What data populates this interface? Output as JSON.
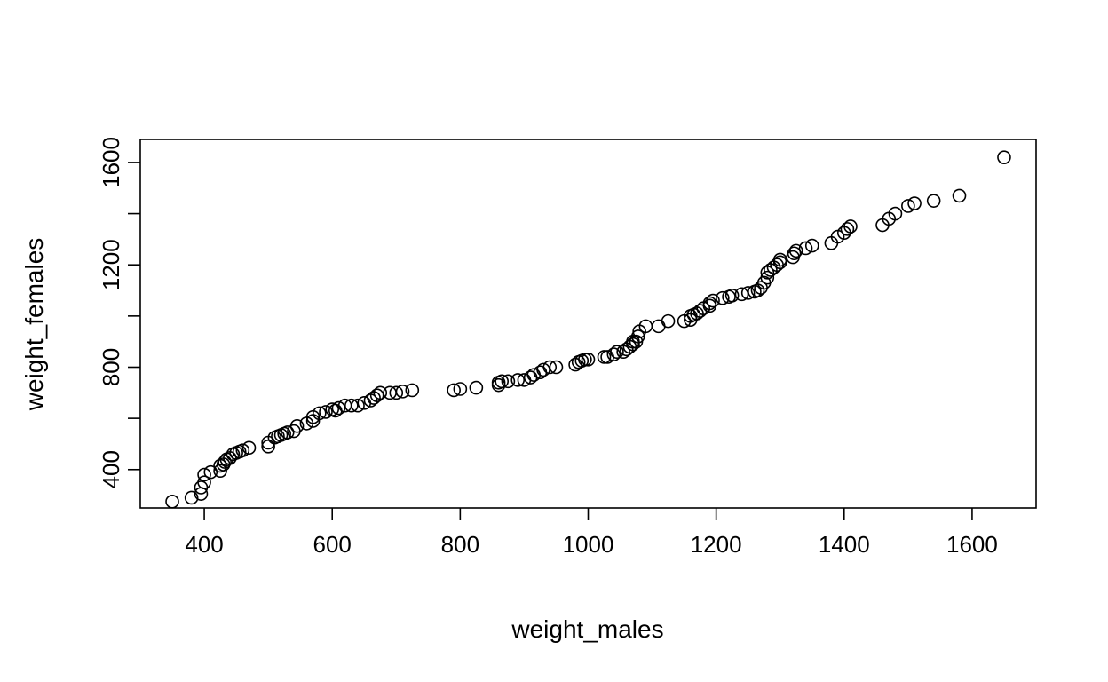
{
  "chart_data": {
    "type": "scatter",
    "title": "",
    "xlabel": "weight_males",
    "ylabel": "weight_females",
    "xlim": [
      300,
      1700
    ],
    "ylim": [
      250,
      1690
    ],
    "xticks": [
      400,
      600,
      800,
      1000,
      1200,
      1400,
      1600
    ],
    "yticks": [
      400,
      800,
      1200,
      1600
    ],
    "yticks_unlabeled": [
      600,
      1000,
      1400
    ],
    "grid": false,
    "legend": "none",
    "marker": "open-circle",
    "series": [
      {
        "values": [
          [
            350,
            275
          ],
          [
            380,
            290
          ],
          [
            395,
            305
          ],
          [
            395,
            330
          ],
          [
            400,
            350
          ],
          [
            400,
            380
          ],
          [
            410,
            390
          ],
          [
            425,
            395
          ],
          [
            425,
            415
          ],
          [
            430,
            420
          ],
          [
            432,
            430
          ],
          [
            435,
            440
          ],
          [
            440,
            445
          ],
          [
            445,
            460
          ],
          [
            450,
            465
          ],
          [
            455,
            470
          ],
          [
            460,
            475
          ],
          [
            470,
            485
          ],
          [
            500,
            490
          ],
          [
            500,
            505
          ],
          [
            510,
            525
          ],
          [
            515,
            530
          ],
          [
            520,
            535
          ],
          [
            525,
            540
          ],
          [
            530,
            545
          ],
          [
            540,
            550
          ],
          [
            545,
            570
          ],
          [
            560,
            580
          ],
          [
            570,
            590
          ],
          [
            570,
            605
          ],
          [
            580,
            620
          ],
          [
            590,
            625
          ],
          [
            600,
            635
          ],
          [
            605,
            630
          ],
          [
            610,
            640
          ],
          [
            620,
            650
          ],
          [
            630,
            650
          ],
          [
            640,
            650
          ],
          [
            650,
            660
          ],
          [
            660,
            670
          ],
          [
            665,
            680
          ],
          [
            670,
            690
          ],
          [
            675,
            700
          ],
          [
            690,
            700
          ],
          [
            700,
            700
          ],
          [
            710,
            705
          ],
          [
            725,
            710
          ],
          [
            790,
            710
          ],
          [
            800,
            715
          ],
          [
            825,
            720
          ],
          [
            860,
            730
          ],
          [
            860,
            740
          ],
          [
            865,
            745
          ],
          [
            875,
            745
          ],
          [
            890,
            750
          ],
          [
            900,
            750
          ],
          [
            910,
            760
          ],
          [
            915,
            770
          ],
          [
            925,
            780
          ],
          [
            930,
            790
          ],
          [
            940,
            800
          ],
          [
            950,
            800
          ],
          [
            980,
            810
          ],
          [
            985,
            820
          ],
          [
            990,
            825
          ],
          [
            995,
            830
          ],
          [
            1000,
            830
          ],
          [
            1025,
            840
          ],
          [
            1030,
            840
          ],
          [
            1040,
            850
          ],
          [
            1045,
            860
          ],
          [
            1055,
            860
          ],
          [
            1060,
            870
          ],
          [
            1065,
            880
          ],
          [
            1070,
            890
          ],
          [
            1070,
            900
          ],
          [
            1075,
            900
          ],
          [
            1078,
            920
          ],
          [
            1080,
            940
          ],
          [
            1090,
            960
          ],
          [
            1110,
            960
          ],
          [
            1125,
            980
          ],
          [
            1150,
            980
          ],
          [
            1160,
            985
          ],
          [
            1160,
            1000
          ],
          [
            1165,
            1005
          ],
          [
            1170,
            1010
          ],
          [
            1175,
            1020
          ],
          [
            1180,
            1030
          ],
          [
            1190,
            1040
          ],
          [
            1190,
            1050
          ],
          [
            1195,
            1060
          ],
          [
            1210,
            1070
          ],
          [
            1220,
            1075
          ],
          [
            1225,
            1080
          ],
          [
            1240,
            1085
          ],
          [
            1250,
            1090
          ],
          [
            1260,
            1095
          ],
          [
            1265,
            1100
          ],
          [
            1270,
            1110
          ],
          [
            1275,
            1130
          ],
          [
            1280,
            1150
          ],
          [
            1280,
            1170
          ],
          [
            1285,
            1180
          ],
          [
            1290,
            1190
          ],
          [
            1295,
            1200
          ],
          [
            1300,
            1210
          ],
          [
            1300,
            1220
          ],
          [
            1320,
            1230
          ],
          [
            1322,
            1245
          ],
          [
            1325,
            1255
          ],
          [
            1340,
            1265
          ],
          [
            1350,
            1275
          ],
          [
            1380,
            1285
          ],
          [
            1390,
            1310
          ],
          [
            1400,
            1325
          ],
          [
            1405,
            1340
          ],
          [
            1410,
            1350
          ],
          [
            1460,
            1355
          ],
          [
            1470,
            1380
          ],
          [
            1480,
            1400
          ],
          [
            1500,
            1430
          ],
          [
            1510,
            1440
          ],
          [
            1540,
            1450
          ],
          [
            1580,
            1470
          ],
          [
            1650,
            1620
          ]
        ]
      }
    ]
  }
}
